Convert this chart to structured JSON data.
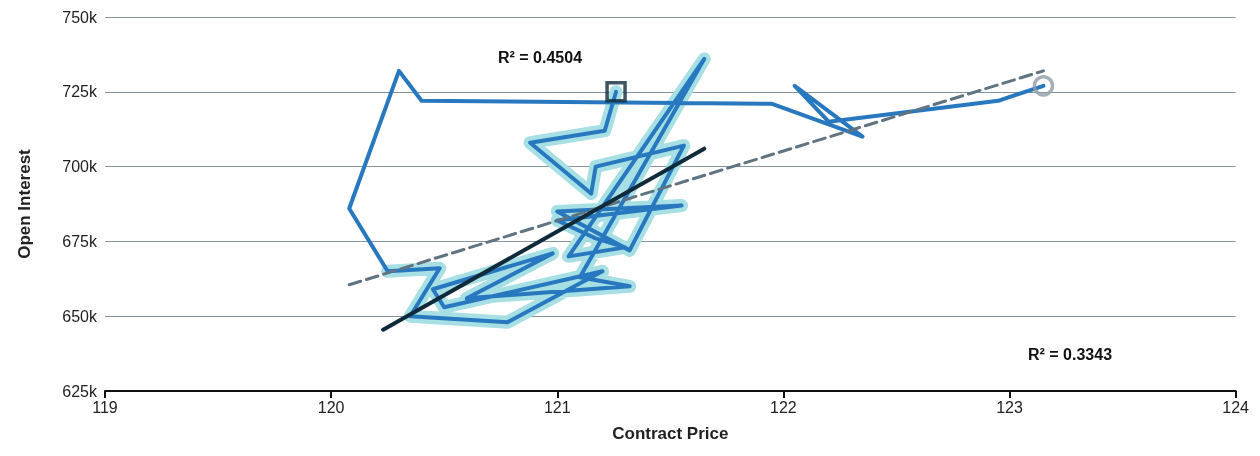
{
  "chart_data": {
    "type": "line",
    "xlabel": "Contract Price",
    "ylabel": "Open Interest",
    "xlim": [
      119,
      124
    ],
    "xticks": [
      119,
      120,
      121,
      122,
      123,
      124
    ],
    "ylim": [
      625000,
      750000
    ],
    "yticks": [
      {
        "value": 625000,
        "label": "625k"
      },
      {
        "value": 650000,
        "label": "650k"
      },
      {
        "value": 675000,
        "label": "675k"
      },
      {
        "value": 700000,
        "label": "700k"
      },
      {
        "value": 725000,
        "label": "725k"
      },
      {
        "value": 750000,
        "label": "750k"
      }
    ],
    "grid": "y",
    "marker": "none",
    "line_style": "solid",
    "series": [
      {
        "color": "#a6dfe4",
        "x": [
          121.26,
          121.21,
          120.88,
          121.15,
          121.17,
          121.56,
          121.32,
          121.0,
          121.55,
          121.0,
          121.17,
          121.3,
          121.05,
          121.65,
          121.1,
          121.32,
          120.6,
          120.98,
          120.45,
          120.5,
          121.2,
          120.78,
          120.35,
          120.48,
          120.25
        ],
        "values": [
          725000,
          712000,
          708000,
          691000,
          700000,
          707000,
          672000,
          685000,
          687000,
          682000,
          676000,
          673000,
          670000,
          736000,
          663000,
          660000,
          656000,
          671000,
          659000,
          653000,
          665000,
          648000,
          650000,
          666000,
          665000
        ]
      },
      {
        "color": "#2878c0",
        "x": [
          121.26,
          121.21,
          120.88,
          121.15,
          121.17,
          121.56,
          121.32,
          121.0,
          121.55,
          121.0,
          121.17,
          121.3,
          121.05,
          121.65,
          121.1,
          121.32,
          120.6,
          120.98,
          120.45,
          120.5,
          121.2,
          120.78,
          120.35,
          120.48,
          120.25,
          120.08,
          120.3,
          120.4,
          121.95,
          122.35,
          122.05,
          122.2,
          122.95,
          123.15
        ],
        "values": [
          725000,
          712000,
          708000,
          691000,
          700000,
          707000,
          672000,
          685000,
          687000,
          682000,
          676000,
          673000,
          670000,
          736000,
          663000,
          660000,
          656000,
          671000,
          659000,
          653000,
          665000,
          648000,
          650000,
          666000,
          665000,
          686000,
          732000,
          722000,
          721000,
          710000,
          727000,
          715000,
          722000,
          727000
        ]
      },
      {
        "color": "#5f7380",
        "line_style": "dashed",
        "x": [
          120.08,
          123.15
        ],
        "values": [
          660500,
          732000
        ]
      },
      {
        "color": "#0f2a3a",
        "x": [
          120.23,
          121.65
        ],
        "values": [
          645500,
          706000
        ]
      },
      {
        "type": "scatter",
        "marker": "square",
        "color": "#0f2a3a",
        "x": [
          121.26
        ],
        "values": [
          725000
        ]
      },
      {
        "type": "scatter",
        "marker": "circle",
        "color": "#8d9ba5",
        "x": [
          123.15
        ],
        "values": [
          727000
        ]
      }
    ],
    "annotations": [
      "R² = 0.4504",
      "R² = 0.3343"
    ]
  }
}
